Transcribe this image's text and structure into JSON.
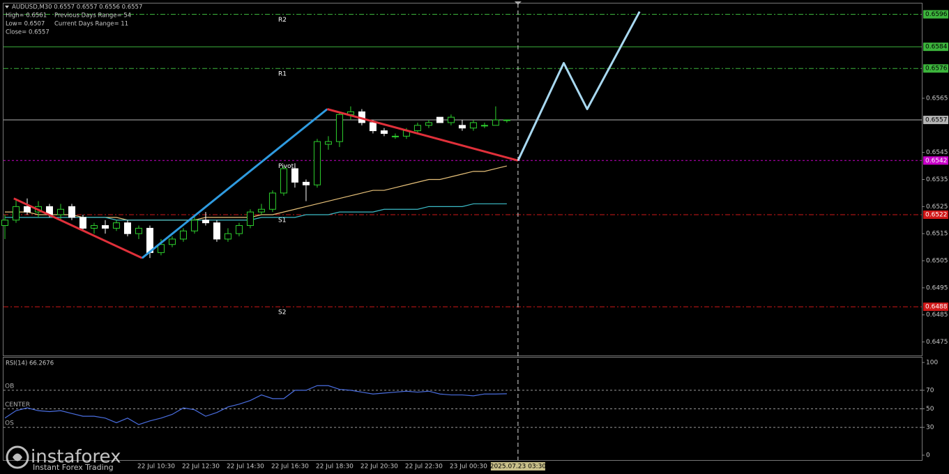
{
  "chart_data": [
    {
      "type": "candlestick",
      "header": "AUDUSD,M30  0.6557 0.6557 0.6556 0.6557",
      "info_left": [
        "High= 0.6561",
        "Low= 0.6507",
        "Close= 0.6557"
      ],
      "info_right": [
        "Previous Days Range= 54",
        "Current Days Range= 11"
      ],
      "categories": [
        null,
        null,
        null,
        null,
        null,
        null,
        null,
        null,
        null,
        null,
        null,
        null,
        "22 Jul 10:30",
        null,
        null,
        null,
        "22 Jul 12:30",
        null,
        null,
        null,
        "22 Jul 14:30",
        null,
        null,
        null,
        "22 Jul 16:30",
        null,
        null,
        null,
        "22 Jul 18:30",
        null,
        null,
        null,
        "22 Jul 20:30",
        null,
        null,
        null,
        "22 Jul 22:30",
        null,
        null,
        null,
        "23 Jul 00:30",
        null,
        null,
        null,
        null,
        null
      ],
      "open": [
        0.6518,
        0.652,
        0.6525,
        0.6523,
        0.6525,
        0.6522,
        0.6525,
        0.6521,
        0.6517,
        0.6518,
        0.6517,
        0.6519,
        0.6515,
        0.6517,
        0.6508,
        0.6511,
        0.6513,
        0.6516,
        0.652,
        0.6519,
        0.6513,
        0.6515,
        0.6518,
        0.6523,
        0.6524,
        0.653,
        0.6539,
        0.6534,
        0.6533,
        0.6548,
        0.6549,
        0.6559,
        0.656,
        0.6556,
        0.6553,
        0.6551,
        0.6551,
        0.6553,
        0.6555,
        0.6558,
        0.6556,
        0.6555,
        0.6554,
        0.6555,
        0.6555,
        0.6557
      ],
      "high": [
        0.6522,
        0.6528,
        0.6528,
        0.6527,
        0.6526,
        0.6526,
        0.6526,
        0.6522,
        0.6519,
        0.652,
        0.652,
        0.652,
        0.6518,
        0.6518,
        0.6513,
        0.6514,
        0.6517,
        0.6522,
        0.6523,
        0.652,
        0.6517,
        0.6519,
        0.6524,
        0.6526,
        0.6531,
        0.654,
        0.6541,
        0.6535,
        0.655,
        0.6551,
        0.656,
        0.6562,
        0.6561,
        0.6557,
        0.6554,
        0.6552,
        0.6554,
        0.6556,
        0.6557,
        0.6558,
        0.6559,
        0.6557,
        0.6557,
        0.6556,
        0.6562,
        0.6557
      ],
      "low": [
        0.6513,
        0.6519,
        0.6522,
        0.6521,
        0.6521,
        0.652,
        0.652,
        0.6516,
        0.6515,
        0.6515,
        0.6516,
        0.6514,
        0.6513,
        0.6506,
        0.6507,
        0.651,
        0.6512,
        0.6515,
        0.6518,
        0.6512,
        0.6512,
        0.6514,
        0.6517,
        0.6522,
        0.6523,
        0.6529,
        0.6532,
        0.6527,
        0.6532,
        0.6546,
        0.6547,
        0.6557,
        0.6555,
        0.6552,
        0.6551,
        0.655,
        0.655,
        0.6552,
        0.6554,
        0.6556,
        0.6555,
        0.6553,
        0.6553,
        0.6554,
        0.6555,
        0.6556
      ],
      "close": [
        0.652,
        0.6525,
        0.6523,
        0.6525,
        0.6522,
        0.6524,
        0.6521,
        0.6517,
        0.6518,
        0.6517,
        0.6519,
        0.6515,
        0.6517,
        0.6508,
        0.6511,
        0.6513,
        0.6516,
        0.652,
        0.6519,
        0.6513,
        0.6515,
        0.6518,
        0.6523,
        0.6524,
        0.653,
        0.6539,
        0.6534,
        0.6533,
        0.6549,
        0.6549,
        0.6559,
        0.656,
        0.6556,
        0.6553,
        0.6552,
        0.6551,
        0.6553,
        0.6555,
        0.6556,
        0.6556,
        0.6558,
        0.6554,
        0.6556,
        0.6555,
        0.6557,
        0.6557
      ],
      "bull_color": "#2ed12e",
      "bear_color": "#ffffff",
      "xlim": [
        -0.125,
        82.2
      ],
      "ylim": [
        0.647,
        0.66
      ],
      "yticks": [
        0.6475,
        0.6485,
        0.6495,
        0.6505,
        0.6515,
        0.6525,
        0.6535,
        0.6545,
        0.6565
      ],
      "moving_averages": [
        {
          "color": "#e8c27a",
          "values": [
            0.6523,
            0.6523,
            0.6523,
            0.6522,
            0.6522,
            0.6522,
            0.6522,
            0.6521,
            0.6521,
            0.6521,
            0.6521,
            0.652,
            0.652,
            0.652,
            0.652,
            0.652,
            0.652,
            0.652,
            0.6521,
            0.6521,
            0.6521,
            0.6521,
            0.6521,
            0.6522,
            0.6522,
            0.6523,
            0.6524,
            0.6525,
            0.6526,
            0.6527,
            0.6528,
            0.6529,
            0.653,
            0.6531,
            0.6531,
            0.6532,
            0.6533,
            0.6534,
            0.6535,
            0.6535,
            0.6536,
            0.6537,
            0.6538,
            0.6538,
            0.6539,
            0.654
          ]
        },
        {
          "color": "#3cbcc8",
          "values": [
            0.6521,
            0.6521,
            0.6521,
            0.6521,
            0.6521,
            0.6521,
            0.6521,
            0.6521,
            0.6521,
            0.6521,
            0.652,
            0.652,
            0.652,
            0.652,
            0.652,
            0.652,
            0.652,
            0.652,
            0.652,
            0.652,
            0.652,
            0.652,
            0.652,
            0.6521,
            0.6521,
            0.6521,
            0.6521,
            0.6522,
            0.6522,
            0.6522,
            0.6523,
            0.6523,
            0.6523,
            0.6523,
            0.6524,
            0.6524,
            0.6524,
            0.6524,
            0.6525,
            0.6525,
            0.6525,
            0.6525,
            0.6526,
            0.6526,
            0.6526,
            0.6526
          ]
        }
      ],
      "levels": [
        {
          "name": "R2",
          "value": 0.6596,
          "color": "#3cb43c",
          "style": "dashdot",
          "label_color": "#000000"
        },
        {
          "value": 0.6584,
          "color": "#3cb43c",
          "style": "solid",
          "label_color": "#000000"
        },
        {
          "name": "R1",
          "value": 0.6576,
          "color": "#3cb43c",
          "style": "dashdot",
          "label_color": "#000000"
        },
        {
          "value": 0.6557,
          "color": "#b4b4b4",
          "style": "solid",
          "label_color": "#000000"
        },
        {
          "name": "Pivot",
          "value": 0.6542,
          "color": "#c800c8",
          "style": "dash",
          "label_color": "#ffffff"
        },
        {
          "name": "S1",
          "value": 0.6522,
          "color": "#d01818",
          "style": "dashdot",
          "label_color": "#ffffff"
        },
        {
          "name": "S2",
          "value": 0.6488,
          "color": "#d01818",
          "style": "dashdot",
          "label_color": "#ffffff"
        }
      ],
      "trendlines": [
        {
          "color": "#e0303a",
          "x": [
            0.8,
            12.3
          ],
          "y": [
            0.6528,
            0.6506
          ]
        },
        {
          "color": "#2f9be0",
          "x": [
            12.3,
            28.9
          ],
          "y": [
            0.6506,
            0.6561
          ]
        },
        {
          "color": "#e0303a",
          "x": [
            28.9,
            46
          ],
          "y": [
            0.6561,
            0.6542
          ]
        },
        {
          "color": "#a8d8f0",
          "x": [
            46,
            50.1,
            52.2,
            56.9
          ],
          "y": [
            0.6542,
            0.6578,
            0.6561,
            0.6597
          ]
        }
      ],
      "cursor": {
        "x": 46,
        "label": "2025.07.23 03:30"
      }
    },
    {
      "type": "line",
      "title": "RSI(14) 66.2676",
      "color": "#4a6ee0",
      "values": [
        40,
        48,
        51,
        48,
        47,
        48,
        45,
        42,
        42,
        40,
        35,
        40,
        33,
        37,
        40,
        44,
        51,
        49,
        42,
        46,
        52,
        55,
        59,
        65,
        61,
        61,
        70,
        70,
        75,
        75,
        71,
        70,
        68,
        66,
        67,
        68,
        69,
        68,
        69,
        66,
        65,
        65,
        64,
        66,
        66,
        66.2676
      ],
      "ylim": [
        0,
        100
      ],
      "yticks": [
        0,
        30,
        50,
        70,
        100
      ],
      "levels": [
        {
          "label": "OB",
          "value": 70
        },
        {
          "label": "CENTER",
          "value": 50
        },
        {
          "label": "OS",
          "value": 30
        }
      ]
    }
  ],
  "logo": {
    "name": "instaforex",
    "tagline": "Instant Forex Trading"
  }
}
